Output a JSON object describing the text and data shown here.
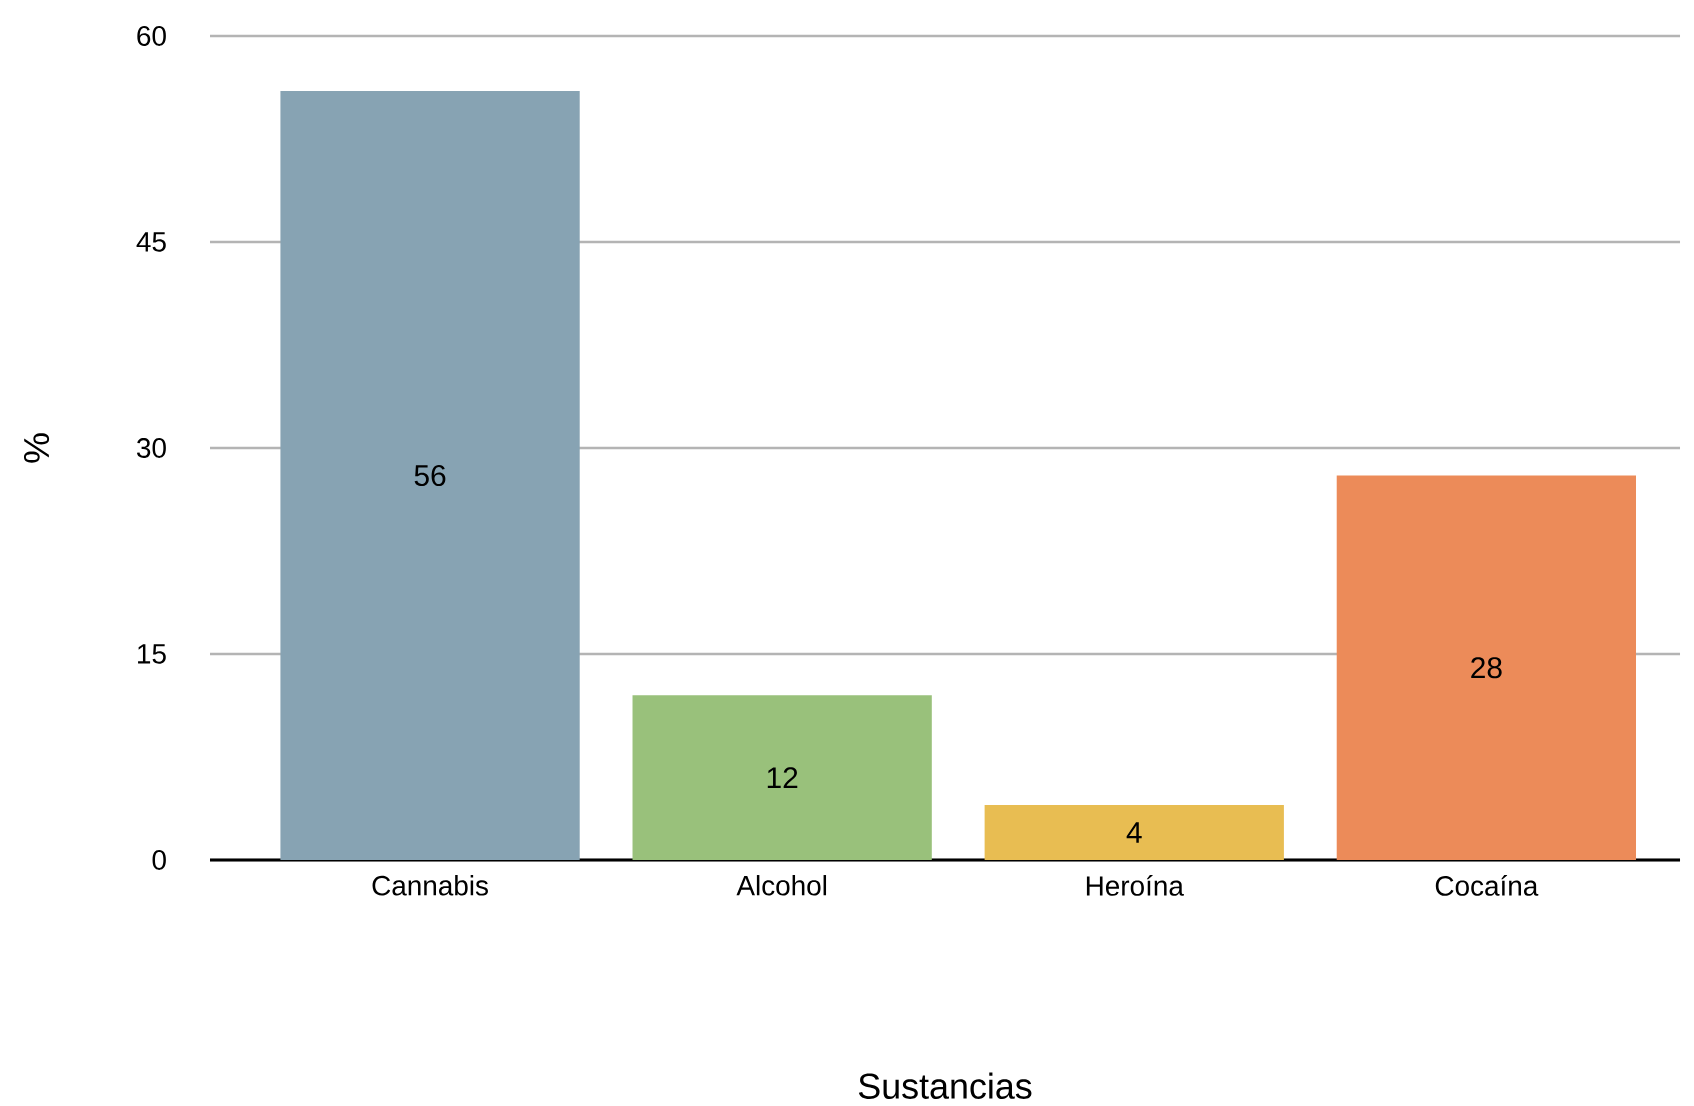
{
  "chart_data": {
    "type": "bar",
    "xlabel": "Sustancias",
    "ylabel": "%",
    "categories": [
      "Cannabis",
      "Alcohol",
      "Heroína",
      "Cocaína"
    ],
    "values": [
      56,
      12,
      4,
      28
    ],
    "colors": [
      "#87a3b3",
      "#99c17b",
      "#e8bd52",
      "#ec8b59"
    ],
    "ylim": [
      0,
      60
    ],
    "yticks": [
      0,
      15,
      30,
      45,
      60
    ],
    "grid": "y",
    "data_labels": true
  }
}
